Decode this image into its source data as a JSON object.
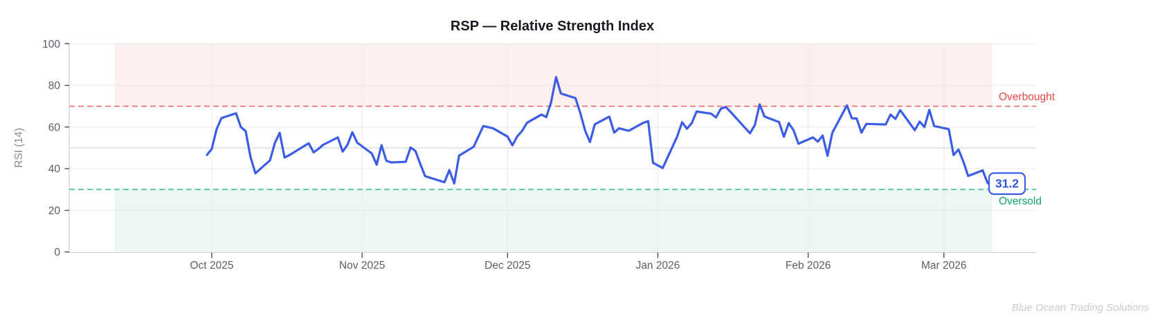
{
  "title": "RSP — Relative Strength Index",
  "watermark": "Blue Ocean Trading Solutions",
  "colors": {
    "line": "#3b5ce6",
    "overbought_line": "#f07575",
    "oversold_line": "#45c392",
    "overbought_band": "#fdefed",
    "oversold_band": "#edf6f1",
    "overbought_label": "#e84545",
    "oversold_label": "#12a269",
    "grid": "#ebebee",
    "grid_mid": "#d7d7db",
    "spine": "#ced3d9",
    "tick_mark": "#46494f",
    "tick_label": "#585d68",
    "title_color": "#191a21",
    "axis_label": "#8b8b93",
    "watermark_color": "#c9c9ce",
    "last_value_text": "#2f55e0",
    "last_value_border": "#3b5ce6",
    "last_value_bg": "#ffffff"
  },
  "chart_data": {
    "type": "line",
    "title": "RSP — Relative Strength Index",
    "ylabel": "RSI (14)",
    "ylim": [
      0,
      100
    ],
    "yticks": [
      0,
      20,
      40,
      60,
      80,
      100
    ],
    "mid_gridline": 50,
    "grid": true,
    "xticks": [
      {
        "label": "Oct 2025",
        "date": "2025-10-01"
      },
      {
        "label": "Nov 2025",
        "date": "2025-11-01"
      },
      {
        "label": "Dec 2025",
        "date": "2025-12-01"
      },
      {
        "label": "Jan 2026",
        "date": "2026-01-01"
      },
      {
        "label": "Feb 2026",
        "date": "2026-02-01"
      },
      {
        "label": "Mar 2026",
        "date": "2026-03-01"
      }
    ],
    "overbought_level": 70,
    "oversold_level": 30,
    "overbought_label": "Overbought",
    "oversold_label": "Oversold",
    "band_span": [
      "2025-09-11",
      "2026-03-11"
    ],
    "last_value_label": "31.2",
    "series": [
      {
        "name": "RSI (14)",
        "points": [
          [
            "2025-09-30",
            46.6
          ],
          [
            "2025-10-01",
            49.5
          ],
          [
            "2025-10-02",
            59
          ],
          [
            "2025-10-03",
            64.3
          ],
          [
            "2025-10-06",
            66.6
          ],
          [
            "2025-10-07",
            60
          ],
          [
            "2025-10-08",
            58
          ],
          [
            "2025-10-09",
            45.5
          ],
          [
            "2025-10-10",
            37.8
          ],
          [
            "2025-10-13",
            44
          ],
          [
            "2025-10-14",
            52.3
          ],
          [
            "2025-10-15",
            57.2
          ],
          [
            "2025-10-16",
            45.4
          ],
          [
            "2025-10-17",
            46.5
          ],
          [
            "2025-10-20",
            50.8
          ],
          [
            "2025-10-21",
            52.2
          ],
          [
            "2025-10-22",
            47.8
          ],
          [
            "2025-10-23",
            49.5
          ],
          [
            "2025-10-24",
            51.5
          ],
          [
            "2025-10-27",
            55
          ],
          [
            "2025-10-28",
            48.2
          ],
          [
            "2025-10-29",
            51.5
          ],
          [
            "2025-10-30",
            57.5
          ],
          [
            "2025-10-31",
            52.5
          ],
          [
            "2025-11-03",
            47.3
          ],
          [
            "2025-11-04",
            41.9
          ],
          [
            "2025-11-05",
            51.3
          ],
          [
            "2025-11-06",
            43.8
          ],
          [
            "2025-11-07",
            43
          ],
          [
            "2025-11-10",
            43.3
          ],
          [
            "2025-11-11",
            50.2
          ],
          [
            "2025-11-12",
            48.5
          ],
          [
            "2025-11-13",
            42.3
          ],
          [
            "2025-11-14",
            36.4
          ],
          [
            "2025-11-17",
            34.2
          ],
          [
            "2025-11-18",
            33.5
          ],
          [
            "2025-11-19",
            39.3
          ],
          [
            "2025-11-20",
            32.9
          ],
          [
            "2025-11-21",
            46.3
          ],
          [
            "2025-11-24",
            50.5
          ],
          [
            "2025-11-25",
            55.5
          ],
          [
            "2025-11-26",
            60.5
          ],
          [
            "2025-11-28",
            59.4
          ],
          [
            "2025-12-01",
            55.4
          ],
          [
            "2025-12-02",
            51.2
          ],
          [
            "2025-12-03",
            55.5
          ],
          [
            "2025-12-04",
            58.1
          ],
          [
            "2025-12-05",
            62
          ],
          [
            "2025-12-08",
            66
          ],
          [
            "2025-12-09",
            64.8
          ],
          [
            "2025-12-10",
            72
          ],
          [
            "2025-12-11",
            84
          ],
          [
            "2025-12-12",
            76.1
          ],
          [
            "2025-12-15",
            73.9
          ],
          [
            "2025-12-16",
            66.8
          ],
          [
            "2025-12-17",
            58.3
          ],
          [
            "2025-12-18",
            52.8
          ],
          [
            "2025-12-19",
            61.3
          ],
          [
            "2025-12-22",
            65
          ],
          [
            "2025-12-23",
            57.3
          ],
          [
            "2025-12-24",
            59.4
          ],
          [
            "2025-12-26",
            58.2
          ],
          [
            "2025-12-29",
            62
          ],
          [
            "2025-12-30",
            62.8
          ],
          [
            "2025-12-31",
            42.8
          ],
          [
            "2026-01-02",
            40.3
          ],
          [
            "2026-01-05",
            55.5
          ],
          [
            "2026-01-06",
            62.3
          ],
          [
            "2026-01-07",
            59.2
          ],
          [
            "2026-01-08",
            61.9
          ],
          [
            "2026-01-09",
            67.5
          ],
          [
            "2026-01-12",
            66.4
          ],
          [
            "2026-01-13",
            64.6
          ],
          [
            "2026-01-14",
            68.8
          ],
          [
            "2026-01-15",
            69.6
          ],
          [
            "2026-01-16",
            67.3
          ],
          [
            "2026-01-20",
            57
          ],
          [
            "2026-01-21",
            60.9
          ],
          [
            "2026-01-22",
            70.9
          ],
          [
            "2026-01-23",
            65
          ],
          [
            "2026-01-26",
            62.4
          ],
          [
            "2026-01-27",
            55.3
          ],
          [
            "2026-01-28",
            61.9
          ],
          [
            "2026-01-29",
            58.4
          ],
          [
            "2026-01-30",
            52
          ],
          [
            "2026-02-02",
            55
          ],
          [
            "2026-02-03",
            53
          ],
          [
            "2026-02-04",
            55.9
          ],
          [
            "2026-02-05",
            46.2
          ],
          [
            "2026-02-06",
            57.3
          ],
          [
            "2026-02-09",
            70.4
          ],
          [
            "2026-02-10",
            64.2
          ],
          [
            "2026-02-11",
            64.1
          ],
          [
            "2026-02-12",
            57.3
          ],
          [
            "2026-02-13",
            61.5
          ],
          [
            "2026-02-17",
            61.2
          ],
          [
            "2026-02-18",
            66
          ],
          [
            "2026-02-19",
            63.9
          ],
          [
            "2026-02-20",
            68.1
          ],
          [
            "2026-02-23",
            58.5
          ],
          [
            "2026-02-24",
            62.6
          ],
          [
            "2026-02-25",
            60
          ],
          [
            "2026-02-26",
            68.2
          ],
          [
            "2026-02-27",
            60.5
          ],
          [
            "2026-03-02",
            59
          ],
          [
            "2026-03-03",
            46.5
          ],
          [
            "2026-03-04",
            49.2
          ],
          [
            "2026-03-05",
            43.5
          ],
          [
            "2026-03-06",
            36.5
          ],
          [
            "2026-03-09",
            39.2
          ],
          [
            "2026-03-10",
            33.2
          ],
          [
            "2026-03-11",
            31.2
          ]
        ]
      }
    ]
  }
}
